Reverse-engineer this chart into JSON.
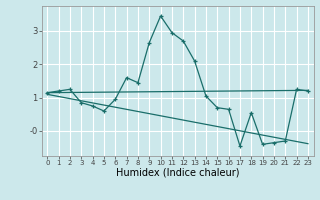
{
  "title": "",
  "xlabel": "Humidex (Indice chaleur)",
  "ylabel": "",
  "background_color": "#cce8eb",
  "grid_color": "#ffffff",
  "line_color": "#1a6e6a",
  "xlim": [
    -0.5,
    23.5
  ],
  "ylim": [
    -0.75,
    3.75
  ],
  "yticks": [
    0,
    1,
    2,
    3
  ],
  "ytick_labels": [
    "-0",
    "1",
    "2",
    "3"
  ],
  "xticks": [
    0,
    1,
    2,
    3,
    4,
    5,
    6,
    7,
    8,
    9,
    10,
    11,
    12,
    13,
    14,
    15,
    16,
    17,
    18,
    19,
    20,
    21,
    22,
    23
  ],
  "series1_x": [
    0,
    1,
    2,
    3,
    4,
    5,
    6,
    7,
    8,
    9,
    10,
    11,
    12,
    13,
    14,
    15,
    16,
    17,
    18,
    19,
    20,
    21,
    22,
    23
  ],
  "series1_y": [
    1.15,
    1.2,
    1.25,
    0.85,
    0.75,
    0.6,
    0.95,
    1.6,
    1.45,
    2.65,
    3.45,
    2.95,
    2.7,
    2.1,
    1.05,
    0.7,
    0.65,
    -0.45,
    0.55,
    -0.4,
    -0.35,
    -0.3,
    1.25,
    1.2
  ],
  "series2_x": [
    0,
    23
  ],
  "series2_y": [
    1.15,
    1.22
  ],
  "series3_x": [
    0,
    23
  ],
  "series3_y": [
    1.1,
    -0.38
  ],
  "marker": "+",
  "xlabel_fontsize": 7,
  "tick_fontsize": 5,
  "ytick_fontsize": 6
}
